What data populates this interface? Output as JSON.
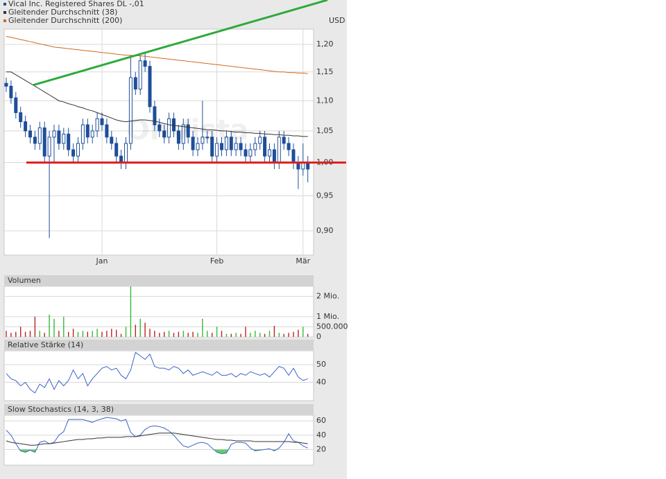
{
  "chart_data": [
    {
      "type": "candlestick",
      "watermark": "OnVista",
      "unit": "USD",
      "log_scale": true,
      "grid": true,
      "ylim": [
        0.867,
        1.2285
      ],
      "yticks": [
        {
          "value": 0.9,
          "label": "0,90"
        },
        {
          "value": 0.95,
          "label": "0,95"
        },
        {
          "value": 1.0,
          "label": "1,00"
        },
        {
          "value": 1.05,
          "label": "1,05"
        },
        {
          "value": 1.1,
          "label": "1,10"
        },
        {
          "value": 1.15,
          "label": "1,15"
        },
        {
          "value": 1.2,
          "label": "1,20"
        }
      ],
      "categories": [
        null,
        null,
        null,
        null,
        null,
        null,
        null,
        null,
        null,
        null,
        null,
        null,
        null,
        null,
        null,
        null,
        null,
        null,
        null,
        null,
        "Jan",
        null,
        null,
        null,
        null,
        null,
        null,
        null,
        null,
        null,
        null,
        null,
        null,
        null,
        null,
        null,
        null,
        null,
        null,
        null,
        null,
        null,
        null,
        null,
        "Feb",
        null,
        null,
        null,
        null,
        null,
        null,
        null,
        null,
        null,
        null,
        null,
        null,
        null,
        null,
        null,
        null,
        null,
        "Mär",
        null
      ],
      "series": [
        {
          "name": "Vical Inc. Registered Shares DL -,01",
          "color": "#1f4e9a",
          "open": [
            1.13,
            1.125,
            1.105,
            1.08,
            1.065,
            1.05,
            1.04,
            1.03,
            1.055,
            1.01,
            1.04,
            1.05,
            1.03,
            1.045,
            1.02,
            1.01,
            1.03,
            1.06,
            1.04,
            1.05,
            1.07,
            1.06,
            1.04,
            1.03,
            1.01,
            1.0,
            1.03,
            1.14,
            1.12,
            1.17,
            1.16,
            1.09,
            1.06,
            1.05,
            1.04,
            1.07,
            1.05,
            1.03,
            1.06,
            1.04,
            1.02,
            1.03,
            1.04,
            1.04,
            1.01,
            1.03,
            1.02,
            1.04,
            1.02,
            1.03,
            1.02,
            1.01,
            1.02,
            1.03,
            1.04,
            1.01,
            1.02,
            1.0,
            1.04,
            1.03,
            1.02,
            1.0,
            0.99,
            1.0
          ],
          "high": [
            1.14,
            1.135,
            1.115,
            1.09,
            1.075,
            1.06,
            1.05,
            1.065,
            1.065,
            1.05,
            1.06,
            1.06,
            1.055,
            1.055,
            1.03,
            1.04,
            1.07,
            1.07,
            1.06,
            1.08,
            1.08,
            1.07,
            1.05,
            1.04,
            1.02,
            1.04,
            1.18,
            1.15,
            1.18,
            1.185,
            1.17,
            1.1,
            1.07,
            1.06,
            1.08,
            1.08,
            1.06,
            1.07,
            1.07,
            1.05,
            1.04,
            1.1,
            1.05,
            1.05,
            1.04,
            1.04,
            1.05,
            1.05,
            1.04,
            1.04,
            1.03,
            1.03,
            1.04,
            1.05,
            1.05,
            1.03,
            1.03,
            1.05,
            1.05,
            1.04,
            1.03,
            1.01,
            1.03,
            1.01
          ],
          "low": [
            1.115,
            1.095,
            1.07,
            1.055,
            1.04,
            1.03,
            1.02,
            1.02,
            1.0,
            0.89,
            1.0,
            1.02,
            1.02,
            1.01,
            1.0,
            1.0,
            1.02,
            1.03,
            1.03,
            1.04,
            1.05,
            1.03,
            1.02,
            1.0,
            0.99,
            0.99,
            1.02,
            1.11,
            1.11,
            1.15,
            1.08,
            1.05,
            1.04,
            1.03,
            1.03,
            1.04,
            1.02,
            1.02,
            1.03,
            1.01,
            1.01,
            1.02,
            1.03,
            1.0,
            1.0,
            1.01,
            1.01,
            1.01,
            1.01,
            1.01,
            1.0,
            1.0,
            1.01,
            1.02,
            1.0,
            1.0,
            0.99,
            0.99,
            1.02,
            1.01,
            0.99,
            0.96,
            0.98,
            0.97
          ],
          "close": [
            1.125,
            1.105,
            1.08,
            1.065,
            1.05,
            1.04,
            1.03,
            1.055,
            1.01,
            1.04,
            1.05,
            1.03,
            1.045,
            1.02,
            1.01,
            1.03,
            1.06,
            1.04,
            1.05,
            1.07,
            1.06,
            1.04,
            1.03,
            1.01,
            1.0,
            1.03,
            1.14,
            1.12,
            1.17,
            1.16,
            1.09,
            1.06,
            1.05,
            1.04,
            1.07,
            1.05,
            1.03,
            1.06,
            1.04,
            1.02,
            1.03,
            1.04,
            1.04,
            1.01,
            1.03,
            1.02,
            1.04,
            1.02,
            1.03,
            1.02,
            1.01,
            1.02,
            1.03,
            1.04,
            1.01,
            1.02,
            1.0,
            1.04,
            1.03,
            1.02,
            1.0,
            0.99,
            1.0,
            0.99
          ]
        },
        {
          "name": "Gleitender Durchschnitt (38)",
          "color": "#333333",
          "type": "line",
          "values": [
            1.15,
            1.15,
            1.145,
            1.14,
            1.135,
            1.13,
            1.125,
            1.12,
            1.115,
            1.11,
            1.105,
            1.1,
            1.098,
            1.095,
            1.093,
            1.09,
            1.088,
            1.085,
            1.083,
            1.08,
            1.077,
            1.074,
            1.071,
            1.068,
            1.066,
            1.065,
            1.066,
            1.067,
            1.068,
            1.068,
            1.067,
            1.066,
            1.064,
            1.062,
            1.06,
            1.059,
            1.058,
            1.057,
            1.056,
            1.055,
            1.054,
            1.053,
            1.052,
            1.052,
            1.051,
            1.05,
            1.05,
            1.049,
            1.048,
            1.048,
            1.047,
            1.047,
            1.046,
            1.046,
            1.045,
            1.045,
            1.044,
            1.044,
            1.043,
            1.043,
            1.042,
            1.042,
            1.041,
            1.041
          ]
        },
        {
          "name": "Gleitender Durchschnitt (200)",
          "color": "#d2691e",
          "type": "line",
          "values": [
            1.215,
            1.213,
            1.211,
            1.209,
            1.207,
            1.205,
            1.203,
            1.201,
            1.199,
            1.197,
            1.195,
            1.194,
            1.193,
            1.192,
            1.191,
            1.19,
            1.189,
            1.188,
            1.187,
            1.186,
            1.185,
            1.184,
            1.183,
            1.182,
            1.181,
            1.18,
            1.18,
            1.179,
            1.179,
            1.178,
            1.177,
            1.176,
            1.175,
            1.174,
            1.173,
            1.172,
            1.171,
            1.17,
            1.169,
            1.168,
            1.167,
            1.166,
            1.165,
            1.164,
            1.163,
            1.162,
            1.161,
            1.16,
            1.159,
            1.158,
            1.157,
            1.156,
            1.155,
            1.154,
            1.153,
            1.152,
            1.151,
            1.15,
            1.15,
            1.149,
            1.149,
            1.148,
            1.148,
            1.147
          ]
        }
      ],
      "trend_lines": [
        {
          "color": "#2eaa3a",
          "x": [
            5.65,
            67.1
          ],
          "values": [
            1.127,
            1.285
          ]
        },
        {
          "color": "#e02020",
          "x": [
            4.2,
            71
          ],
          "values": [
            1.0,
            1.0
          ]
        }
      ]
    },
    {
      "type": "bar",
      "title": "Volumen",
      "up_color": "#33bb33",
      "down_color": "#bb2222",
      "grid": true,
      "ylim": [
        0,
        2500000
      ],
      "yticks": [
        0,
        {
          "value": 500000,
          "label": "500.000"
        },
        {
          "value": 1000000,
          "label": "1 Mio."
        },
        {
          "value": 2000000,
          "label": "2 Mio."
        }
      ],
      "values": [
        300000,
        200000,
        250000,
        500000,
        250000,
        300000,
        1000000,
        300000,
        200000,
        1100000,
        900000,
        300000,
        1000000,
        250000,
        400000,
        250000,
        300000,
        250000,
        300000,
        400000,
        250000,
        300000,
        400000,
        350000,
        150000,
        500000,
        2600000,
        600000,
        900000,
        700000,
        400000,
        300000,
        200000,
        250000,
        300000,
        200000,
        250000,
        300000,
        200000,
        250000,
        200000,
        900000,
        300000,
        200000,
        500000,
        300000,
        150000,
        150000,
        200000,
        150000,
        500000,
        200000,
        300000,
        200000,
        150000,
        300000,
        550000,
        200000,
        150000,
        200000,
        250000,
        350000,
        500000,
        150000
      ]
    },
    {
      "type": "line",
      "title": "Relative Stärke (14)",
      "grid": true,
      "ylim": [
        29.6,
        57.9
      ],
      "yticks": [
        40,
        50
      ],
      "series": [
        {
          "color": "#3a62c8",
          "values": [
            45,
            42,
            41,
            38,
            40,
            36,
            34,
            39,
            37,
            42,
            36,
            41,
            38,
            41,
            47,
            42,
            45,
            38,
            42,
            45,
            48,
            49,
            47,
            48,
            44,
            42,
            47,
            57,
            55,
            53,
            56,
            49,
            48,
            48,
            47,
            49,
            48,
            45,
            47,
            44,
            45,
            46,
            45,
            44,
            46,
            44,
            44,
            45,
            43,
            45,
            44,
            46,
            45,
            44,
            45,
            43,
            46,
            49,
            48,
            44,
            48,
            43,
            41,
            42
          ]
        }
      ]
    },
    {
      "type": "line",
      "title": "Slow Stochastics (14, 3, 38)",
      "grid": true,
      "ylim": [
        -2,
        68
      ],
      "yticks": [
        20,
        40,
        60
      ],
      "fill_below": 20,
      "fill_color": "#66cc66",
      "series": [
        {
          "color": "#3a62c8",
          "values": [
            47,
            40,
            28,
            18,
            16,
            19,
            16,
            30,
            32,
            28,
            30,
            40,
            45,
            62,
            62,
            62,
            62,
            60,
            58,
            61,
            63,
            65,
            64,
            63,
            60,
            62,
            44,
            38,
            40,
            48,
            52,
            53,
            52,
            50,
            46,
            40,
            32,
            25,
            23,
            26,
            29,
            30,
            28,
            22,
            16,
            14,
            15,
            27,
            30,
            30,
            29,
            22,
            18,
            19,
            20,
            21,
            18,
            22,
            30,
            42,
            32,
            30,
            25,
            22
          ]
        },
        {
          "color": "#333333",
          "values": [
            32,
            30,
            29,
            28,
            27,
            26,
            26,
            27,
            28,
            28,
            29,
            30,
            31,
            32,
            33,
            34,
            34,
            35,
            35,
            36,
            36,
            37,
            37,
            37,
            37,
            38,
            38,
            38,
            39,
            40,
            41,
            42,
            43,
            43,
            43,
            43,
            42,
            41,
            40,
            39,
            38,
            37,
            36,
            35,
            34,
            34,
            33,
            33,
            32,
            32,
            32,
            32,
            31,
            31,
            31,
            31,
            31,
            31,
            31,
            31,
            30,
            30,
            29,
            28
          ]
        }
      ]
    }
  ]
}
